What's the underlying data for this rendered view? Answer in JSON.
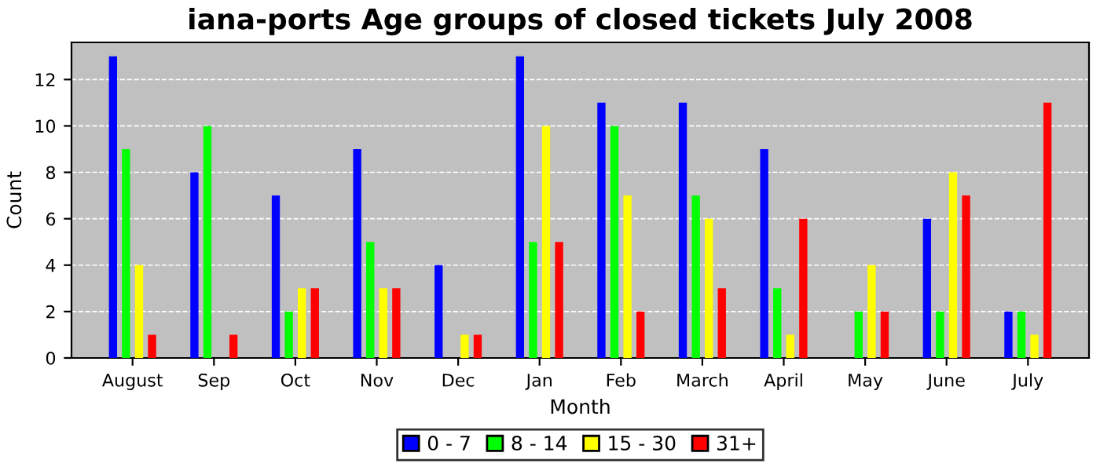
{
  "chart_data": {
    "type": "bar",
    "title": "iana-ports Age groups of closed tickets July 2008",
    "xlabel": "Month",
    "ylabel": "Count",
    "categories": [
      "August",
      "Sep",
      "Oct",
      "Nov",
      "Dec",
      "Jan",
      "Feb",
      "March",
      "April",
      "May",
      "June",
      "July"
    ],
    "series": [
      {
        "name": "0 - 7",
        "color": "#0000ff",
        "values": [
          13,
          8,
          7,
          9,
          4,
          13,
          11,
          11,
          9,
          0,
          6,
          2
        ]
      },
      {
        "name": "8 - 14",
        "color": "#00ff00",
        "values": [
          9,
          10,
          2,
          5,
          0,
          5,
          10,
          7,
          3,
          2,
          2,
          2
        ]
      },
      {
        "name": "15 - 30",
        "color": "#ffff00",
        "values": [
          4,
          0,
          3,
          3,
          1,
          10,
          7,
          6,
          1,
          4,
          8,
          1
        ]
      },
      {
        "name": "31+",
        "color": "#ff0000",
        "values": [
          1,
          1,
          3,
          3,
          1,
          5,
          2,
          3,
          6,
          2,
          7,
          11
        ]
      }
    ],
    "ylim": [
      0,
      13.6
    ],
    "yticks": [
      0,
      2,
      4,
      6,
      8,
      10,
      12
    ],
    "grid": "y",
    "legend": "bottom"
  }
}
